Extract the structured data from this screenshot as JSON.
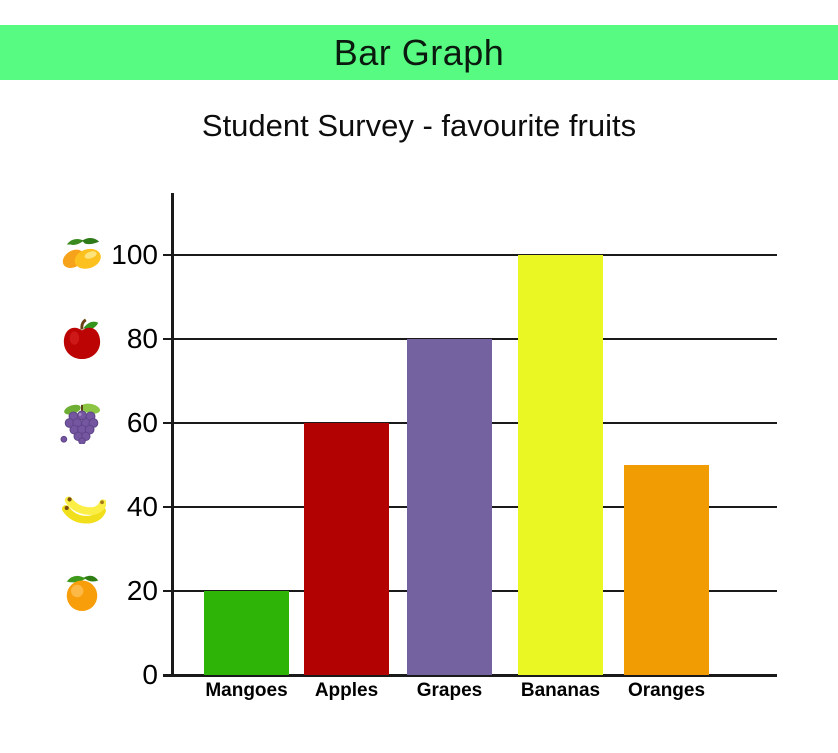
{
  "header": {
    "banner_title": "Bar Graph",
    "banner_color": "#57fb82"
  },
  "chart_data": {
    "type": "bar",
    "title": "Student Survey - favourite fruits",
    "categories": [
      "Mangoes",
      "Apples",
      "Grapes",
      "Bananas",
      "Oranges"
    ],
    "values": [
      20,
      60,
      80,
      100,
      50
    ],
    "bar_colors": [
      "#2db407",
      "#b30202",
      "#73629f",
      "#ebf723",
      "#f29c04"
    ],
    "xlabel": "",
    "ylabel": "",
    "ylim": [
      0,
      115
    ],
    "yticks": [
      0,
      20,
      40,
      60,
      80,
      100
    ],
    "grid": true,
    "legend": false,
    "axis_color": "#1a1a1a",
    "ytick_icons": [
      {
        "value": 100,
        "icon": "mango-icon"
      },
      {
        "value": 80,
        "icon": "apple-icon"
      },
      {
        "value": 60,
        "icon": "grapes-icon"
      },
      {
        "value": 40,
        "icon": "banana-icon"
      },
      {
        "value": 20,
        "icon": "orange-icon"
      }
    ]
  }
}
